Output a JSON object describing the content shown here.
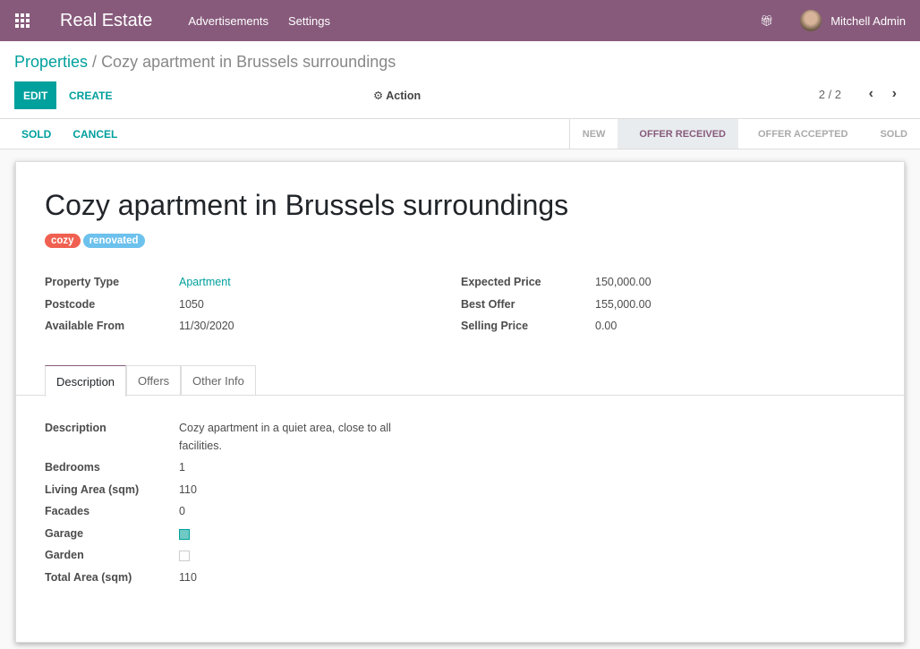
{
  "navbar": {
    "app_name": "Real Estate",
    "menus": [
      "Advertisements",
      "Settings"
    ],
    "user": "Mitchell Admin"
  },
  "breadcrumb": {
    "parent": "Properties",
    "current": "Cozy apartment in Brussels surroundings"
  },
  "toolbar": {
    "edit": "EDIT",
    "create": "CREATE",
    "action": "Action",
    "pager": "2 / 2"
  },
  "statusbar": {
    "buttons": [
      "SOLD",
      "CANCEL"
    ],
    "stages": [
      "NEW",
      "OFFER RECEIVED",
      "OFFER ACCEPTED",
      "SOLD"
    ],
    "active_stage": "OFFER RECEIVED"
  },
  "record": {
    "title": "Cozy apartment in Brussels surroundings",
    "tags": [
      {
        "name": "cozy",
        "color": "#f06050"
      },
      {
        "name": "renovated",
        "color": "#6cc1ed"
      }
    ],
    "left": [
      {
        "label": "Property Type",
        "value": "Apartment"
      },
      {
        "label": "Postcode",
        "value": "1050"
      },
      {
        "label": "Available From",
        "value": "11/30/2020"
      }
    ],
    "right": [
      {
        "label": "Expected Price",
        "value": "150,000.00"
      },
      {
        "label": "Best Offer",
        "value": "155,000.00"
      },
      {
        "label": "Selling Price",
        "value": "0.00"
      }
    ],
    "tabs": [
      "Description",
      "Offers",
      "Other Info"
    ],
    "description": [
      {
        "label": "Description",
        "value": "Cozy apartment in a quiet area, close to all facilities."
      },
      {
        "label": "Bedrooms",
        "value": "1"
      },
      {
        "label": "Living Area (sqm)",
        "value": "110"
      },
      {
        "label": "Facades",
        "value": "0"
      },
      {
        "label": "Garage",
        "checked": true
      },
      {
        "label": "Garden",
        "checked": false
      },
      {
        "label": "Total Area (sqm)",
        "value": "110"
      }
    ]
  }
}
